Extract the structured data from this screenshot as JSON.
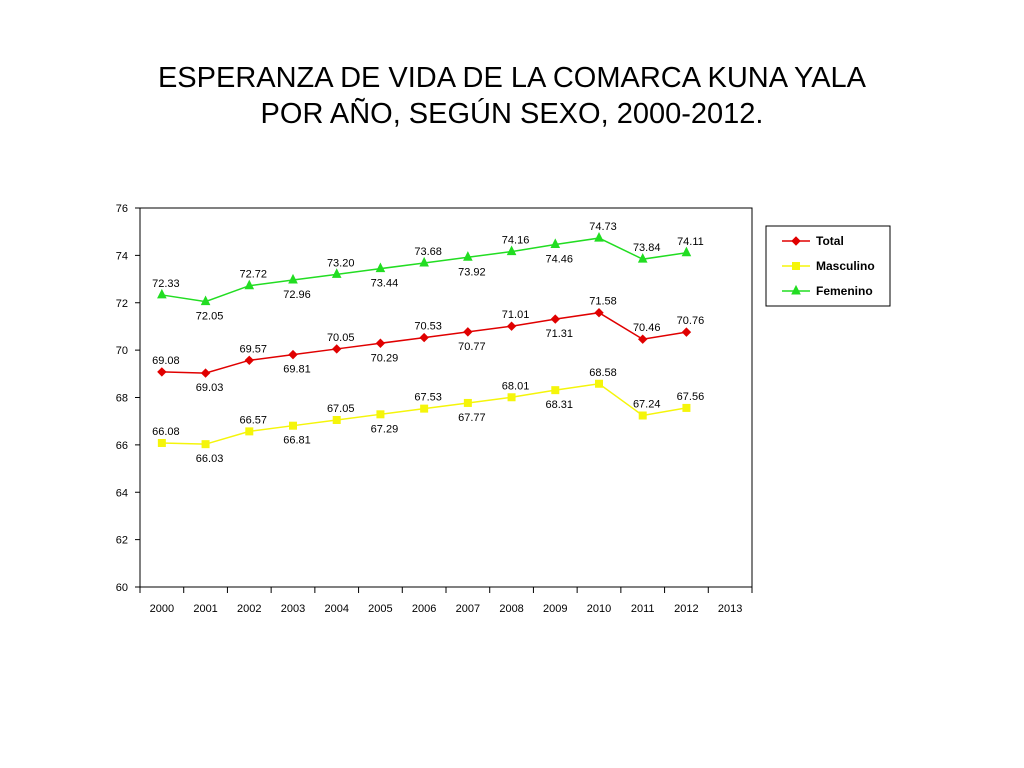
{
  "title": {
    "line1": "ESPERANZA DE VIDA DE LA COMARCA KUNA YALA",
    "line2": "POR AÑO, SEGÚN SEXO, 2000-2012."
  },
  "chart_data": {
    "type": "line",
    "x": [
      2000,
      2001,
      2002,
      2003,
      2004,
      2005,
      2006,
      2007,
      2008,
      2009,
      2010,
      2011,
      2012
    ],
    "x_tick_labels": [
      "2000",
      "2001",
      "2002",
      "2003",
      "2004",
      "2005",
      "2006",
      "2007",
      "2008",
      "2009",
      "2010",
      "2011",
      "2012",
      "2013"
    ],
    "ylim": [
      60,
      76
    ],
    "y_ticks": [
      60,
      62,
      64,
      66,
      68,
      70,
      72,
      74,
      76
    ],
    "grid": false,
    "legend": "right",
    "series": [
      {
        "name": "Total",
        "color": "#e00000",
        "marker": "diamond",
        "values": [
          69.08,
          69.03,
          69.57,
          69.81,
          70.05,
          70.29,
          70.53,
          70.77,
          71.01,
          71.31,
          71.58,
          70.46,
          70.76
        ],
        "labels": [
          "69.08",
          "69.03",
          "69.57",
          "69.81",
          "70.05",
          "70.29",
          "70.53",
          "70.77",
          "71.01",
          "71.31",
          "71.58",
          "70.46",
          "70.76"
        ]
      },
      {
        "name": "Masculino",
        "color": "#f5f50a",
        "marker": "square",
        "values": [
          66.08,
          66.03,
          66.57,
          66.81,
          67.05,
          67.29,
          67.53,
          67.77,
          68.01,
          68.31,
          68.58,
          67.24,
          67.56
        ],
        "labels": [
          "66.08",
          "66.03",
          "66.57",
          "66.81",
          "67.05",
          "67.29",
          "67.53",
          "67.77",
          "68.01",
          "68.31",
          "68.58",
          "67.24",
          "67.56"
        ]
      },
      {
        "name": "Femenino",
        "color": "#22dd22",
        "marker": "triangle",
        "values": [
          72.33,
          72.05,
          72.72,
          72.96,
          73.2,
          73.44,
          73.68,
          73.92,
          74.16,
          74.46,
          74.73,
          73.84,
          74.11
        ],
        "labels": [
          "72.33",
          "72.05",
          "72.72",
          "72.96",
          "73.20",
          "73.44",
          "73.68",
          "73.92",
          "74.16",
          "74.46",
          "74.73",
          "73.84",
          "74.11"
        ]
      }
    ]
  }
}
